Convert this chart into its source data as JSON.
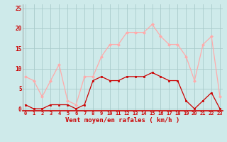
{
  "hours": [
    0,
    1,
    2,
    3,
    4,
    5,
    6,
    7,
    8,
    9,
    10,
    11,
    12,
    13,
    14,
    15,
    16,
    17,
    18,
    19,
    20,
    21,
    22,
    23
  ],
  "vent_moyen": [
    1,
    0,
    0,
    1,
    1,
    1,
    0,
    1,
    7,
    8,
    7,
    7,
    8,
    8,
    8,
    9,
    8,
    7,
    7,
    2,
    0,
    2,
    4,
    0
  ],
  "rafales": [
    8,
    7,
    3,
    7,
    11,
    2,
    1,
    8,
    8,
    13,
    16,
    16,
    19,
    19,
    19,
    21,
    18,
    16,
    16,
    13,
    7,
    16,
    18,
    3
  ],
  "color_moyen": "#cc0000",
  "color_rafales": "#ffaaaa",
  "bg_color": "#ceeaea",
  "grid_color": "#aacccc",
  "xlabel": "Vent moyen/en rafales ( km/h )",
  "xlabel_color": "#cc0000",
  "ylabel_vals": [
    0,
    5,
    10,
    15,
    20,
    25
  ],
  "ylim": [
    -0.5,
    26
  ],
  "xlim": [
    -0.3,
    23.3
  ],
  "spine_color": "#cc0000",
  "tick_color": "#cc0000"
}
